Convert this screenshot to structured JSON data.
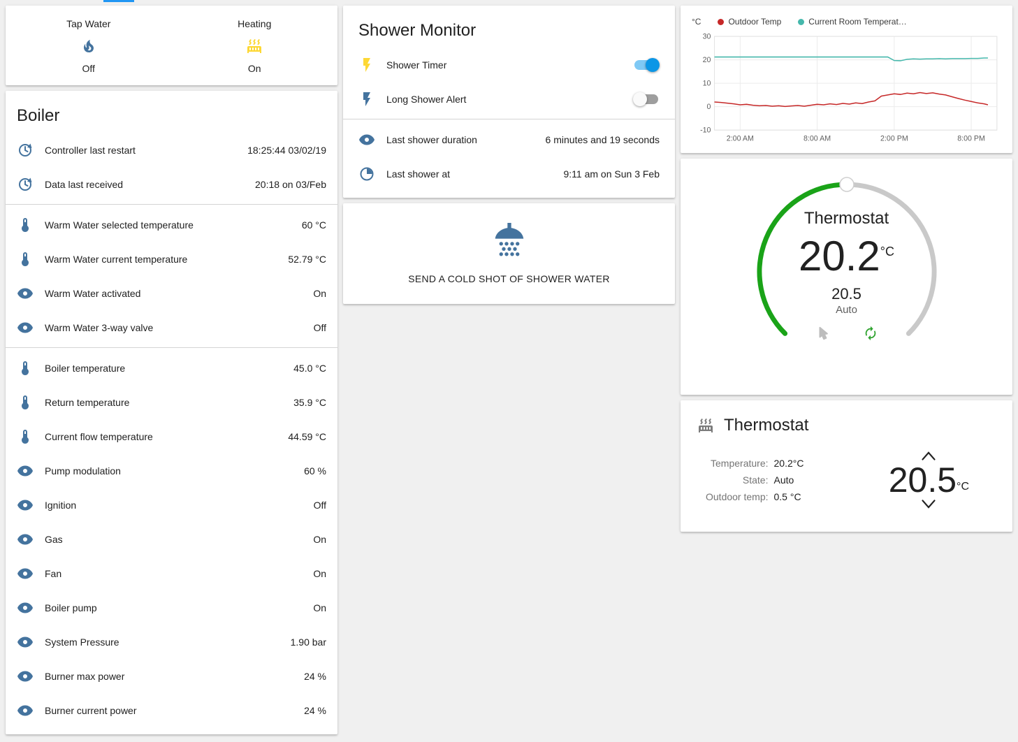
{
  "page": {
    "background": "#f0f0f0",
    "accent": "#2196f3",
    "toggle_on": "#0c96e6"
  },
  "tap_heating_card": {
    "items": [
      {
        "label": "Tap Water",
        "state": "Off",
        "icon": "fire-icon",
        "icon_color": "#44739e"
      },
      {
        "label": "Heating",
        "state": "On",
        "icon": "radiator-icon",
        "icon_color": "#fdd835"
      }
    ]
  },
  "boiler": {
    "title": "Boiler",
    "icon_color": "#44739e",
    "rows": [
      {
        "icon": "update-icon",
        "label": "Controller last restart",
        "value": "18:25:44 03/02/19"
      },
      {
        "icon": "update-icon",
        "label": "Data last received",
        "value": "20:18 on 03/Feb"
      },
      {
        "icon": "thermometer-icon",
        "label": "Warm Water selected temperature",
        "value": "60 °C"
      },
      {
        "icon": "thermometer-icon",
        "label": "Warm Water current temperature",
        "value": "52.79 °C"
      },
      {
        "icon": "eye-icon",
        "label": "Warm Water activated",
        "value": "On"
      },
      {
        "icon": "eye-icon",
        "label": "Warm Water 3-way valve",
        "value": "Off"
      },
      {
        "icon": "thermometer-icon",
        "label": "Boiler temperature",
        "value": "45.0 °C"
      },
      {
        "icon": "thermometer-icon",
        "label": "Return temperature",
        "value": "35.9 °C"
      },
      {
        "icon": "thermometer-icon",
        "label": "Current flow temperature",
        "value": "44.59 °C"
      },
      {
        "icon": "eye-icon",
        "label": "Pump modulation",
        "value": "60 %"
      },
      {
        "icon": "eye-icon",
        "label": "Ignition",
        "value": "Off"
      },
      {
        "icon": "eye-icon",
        "label": "Gas",
        "value": "On"
      },
      {
        "icon": "eye-icon",
        "label": "Fan",
        "value": "On"
      },
      {
        "icon": "eye-icon",
        "label": "Boiler pump",
        "value": "On"
      },
      {
        "icon": "eye-icon",
        "label": "System Pressure",
        "value": "1.90 bar"
      },
      {
        "icon": "eye-icon",
        "label": "Burner max power",
        "value": "24 %"
      },
      {
        "icon": "eye-icon",
        "label": "Burner current power",
        "value": "24 %"
      }
    ]
  },
  "shower_monitor": {
    "title": "Shower Monitor",
    "toggles": [
      {
        "icon": "flash-icon",
        "icon_color": "#fdd835",
        "label": "Shower Timer",
        "on": true
      },
      {
        "icon": "flash-icon",
        "icon_color": "#44739e",
        "label": "Long Shower Alert",
        "on": false
      }
    ],
    "info_rows": [
      {
        "icon": "eye-icon",
        "label": "Last shower duration",
        "value": "6 minutes and 19 seconds"
      },
      {
        "icon": "progress-clock-icon",
        "label": "Last shower at",
        "value": "9:11 am on Sun 3 Feb"
      }
    ]
  },
  "cold_shot": {
    "label": "SEND A COLD SHOT OF SHOWER WATER",
    "icon_color": "#44739e"
  },
  "chart_data": {
    "type": "line",
    "unit": "°C",
    "title": "",
    "legend_position": "top",
    "grid": true,
    "ylim": [
      -10,
      30
    ],
    "y_ticks": [
      30,
      20,
      10,
      0,
      -10
    ],
    "x_range_hours": [
      0,
      22
    ],
    "x_tick_hours": [
      2,
      8,
      14,
      20
    ],
    "x_ticks": [
      "2:00 AM",
      "8:00 AM",
      "2:00 PM",
      "8:00 PM"
    ],
    "series": [
      {
        "name": "Outdoor Temp",
        "color": "#c62828",
        "x": [
          0,
          0.5,
          1,
          1.5,
          2,
          2.5,
          3,
          3.5,
          4,
          4.5,
          5,
          5.5,
          6,
          6.5,
          7,
          7.5,
          8,
          8.5,
          9,
          9.5,
          10,
          10.5,
          11,
          11.5,
          12,
          12.5,
          13,
          13.5,
          14,
          14.5,
          15,
          15.5,
          16,
          16.5,
          17,
          17.5,
          18,
          18.5,
          19,
          19.5,
          20,
          20.5,
          21,
          21.3
        ],
        "values": [
          2,
          1.8,
          1.5,
          1.2,
          0.8,
          1,
          0.6,
          0.4,
          0.5,
          0.2,
          0.4,
          0.1,
          0.3,
          0.5,
          0.2,
          0.6,
          1,
          0.8,
          1.2,
          0.9,
          1.4,
          1.1,
          1.6,
          1.3,
          2,
          2.5,
          4.5,
          5,
          5.5,
          5.2,
          5.8,
          5.5,
          6,
          5.6,
          5.9,
          5.4,
          5,
          4.2,
          3.5,
          2.8,
          2.2,
          1.6,
          1.2,
          0.8
        ]
      },
      {
        "name": "Current Room Temperat…",
        "color": "#45b8ac",
        "x": [
          0,
          0.5,
          1,
          1.5,
          2,
          2.5,
          3,
          3.5,
          4,
          4.5,
          5,
          5.5,
          6,
          6.5,
          7,
          7.5,
          8,
          8.5,
          9,
          9.5,
          10,
          10.5,
          11,
          11.5,
          12,
          12.5,
          13,
          13.5,
          14,
          14.5,
          15,
          15.5,
          16,
          16.5,
          17,
          17.5,
          18,
          18.5,
          19,
          19.5,
          20,
          20.5,
          21,
          21.3
        ],
        "values": [
          21.2,
          21.2,
          21.2,
          21.2,
          21.2,
          21.2,
          21.2,
          21.2,
          21.2,
          21.2,
          21.2,
          21.2,
          21.2,
          21.2,
          21.2,
          21.2,
          21.2,
          21.2,
          21.2,
          21.2,
          21.2,
          21.2,
          21.2,
          21.2,
          21.2,
          21.2,
          21.2,
          21.2,
          19.7,
          19.6,
          20.2,
          20.4,
          20.3,
          20.4,
          20.4,
          20.5,
          20.4,
          20.5,
          20.5,
          20.5,
          20.6,
          20.6,
          20.8,
          20.8
        ]
      }
    ]
  },
  "thermostat_dial": {
    "title": "Thermostat",
    "current_temp": "20.2",
    "unit": "°C",
    "target_temp": "20.5",
    "mode": "Auto",
    "arc_active_color": "#1aa318",
    "arc_inactive_color": "#c9c9c9",
    "manual_icon_color": "#bdbdbd",
    "auto_icon_color": "#2fa32f"
  },
  "thermostat_info": {
    "title": "Thermostat",
    "icon_color": "#7c7c7c",
    "rows": [
      {
        "label": "Temperature:",
        "value": "20.2°C"
      },
      {
        "label": "State:",
        "value": "Auto"
      },
      {
        "label": "Outdoor temp:",
        "value": "0.5 °C"
      }
    ],
    "setpoint": "20.5",
    "unit": "°C"
  }
}
